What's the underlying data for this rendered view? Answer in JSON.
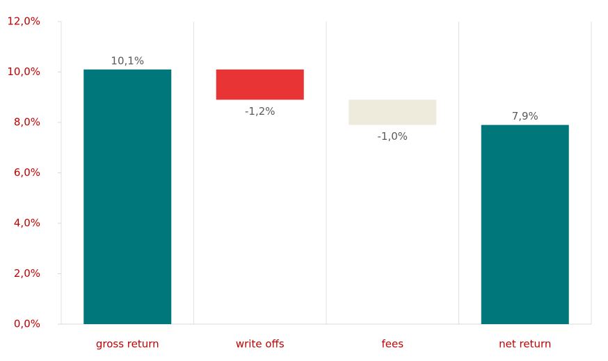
{
  "chart_data": {
    "type": "waterfall",
    "categories": [
      "gross return",
      "write offs",
      "fees",
      "net return"
    ],
    "values": [
      10.1,
      -1.2,
      -1.0,
      7.9
    ],
    "value_labels": [
      "10,1%",
      "-1,2%",
      "-1,0%",
      "7,9%"
    ],
    "totals": [
      true,
      false,
      false,
      true
    ],
    "colors": [
      "#00777b",
      "#e83434",
      "#eeeadc",
      "#00777b"
    ],
    "ylim": [
      0,
      12
    ],
    "yticks": [
      {
        "value": 0,
        "label": "0,0%"
      },
      {
        "value": 2,
        "label": "2,0%"
      },
      {
        "value": 4,
        "label": "4,0%"
      },
      {
        "value": 6,
        "label": "6,0%"
      },
      {
        "value": 8,
        "label": "8,0%"
      },
      {
        "value": 10,
        "label": "10,0%"
      },
      {
        "value": 12,
        "label": "12,0%"
      }
    ]
  }
}
